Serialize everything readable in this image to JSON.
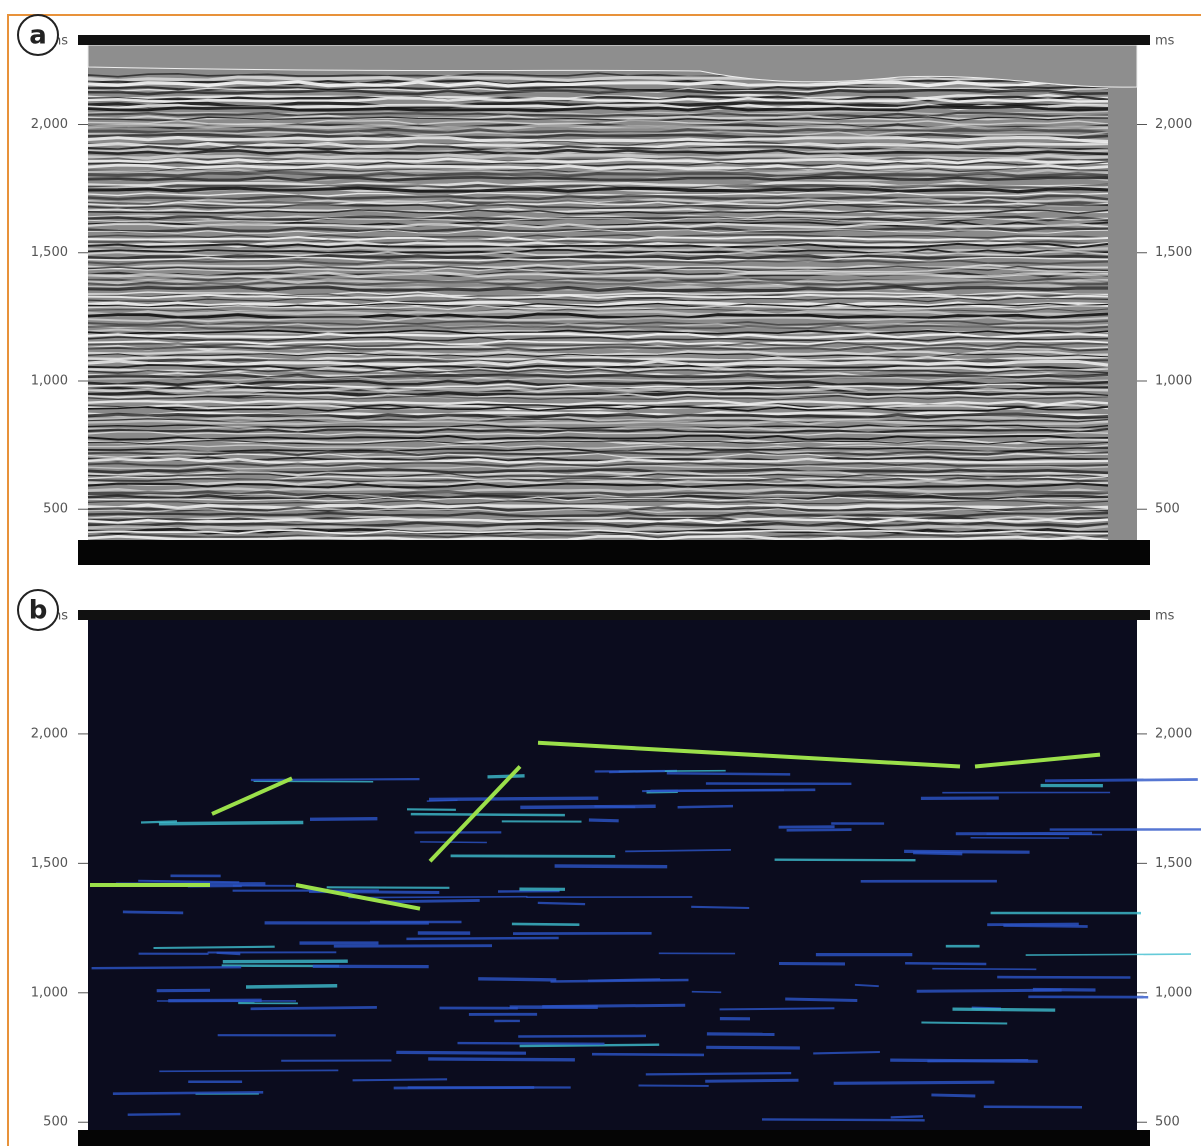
{
  "chart_data": [
    {
      "type": "seismic",
      "panel_label": "a",
      "unit": "ms",
      "ylim": [
        380,
        2310
      ],
      "yticks": [
        500,
        {
          "value": 1000,
          "label": "1,000"
        },
        {
          "value": 1500,
          "label": "1,500"
        },
        {
          "value": 2000,
          "label": "2,000"
        }
      ]
    },
    {
      "type": "energy",
      "panel_label": "b",
      "unit": "ms",
      "ylim": [
        470,
        2440
      ],
      "yticks": [
        500,
        {
          "value": 1000,
          "label": "1,000"
        },
        {
          "value": 1500,
          "label": "1,500"
        },
        {
          "value": 2000,
          "label": "2,000"
        }
      ]
    }
  ]
}
